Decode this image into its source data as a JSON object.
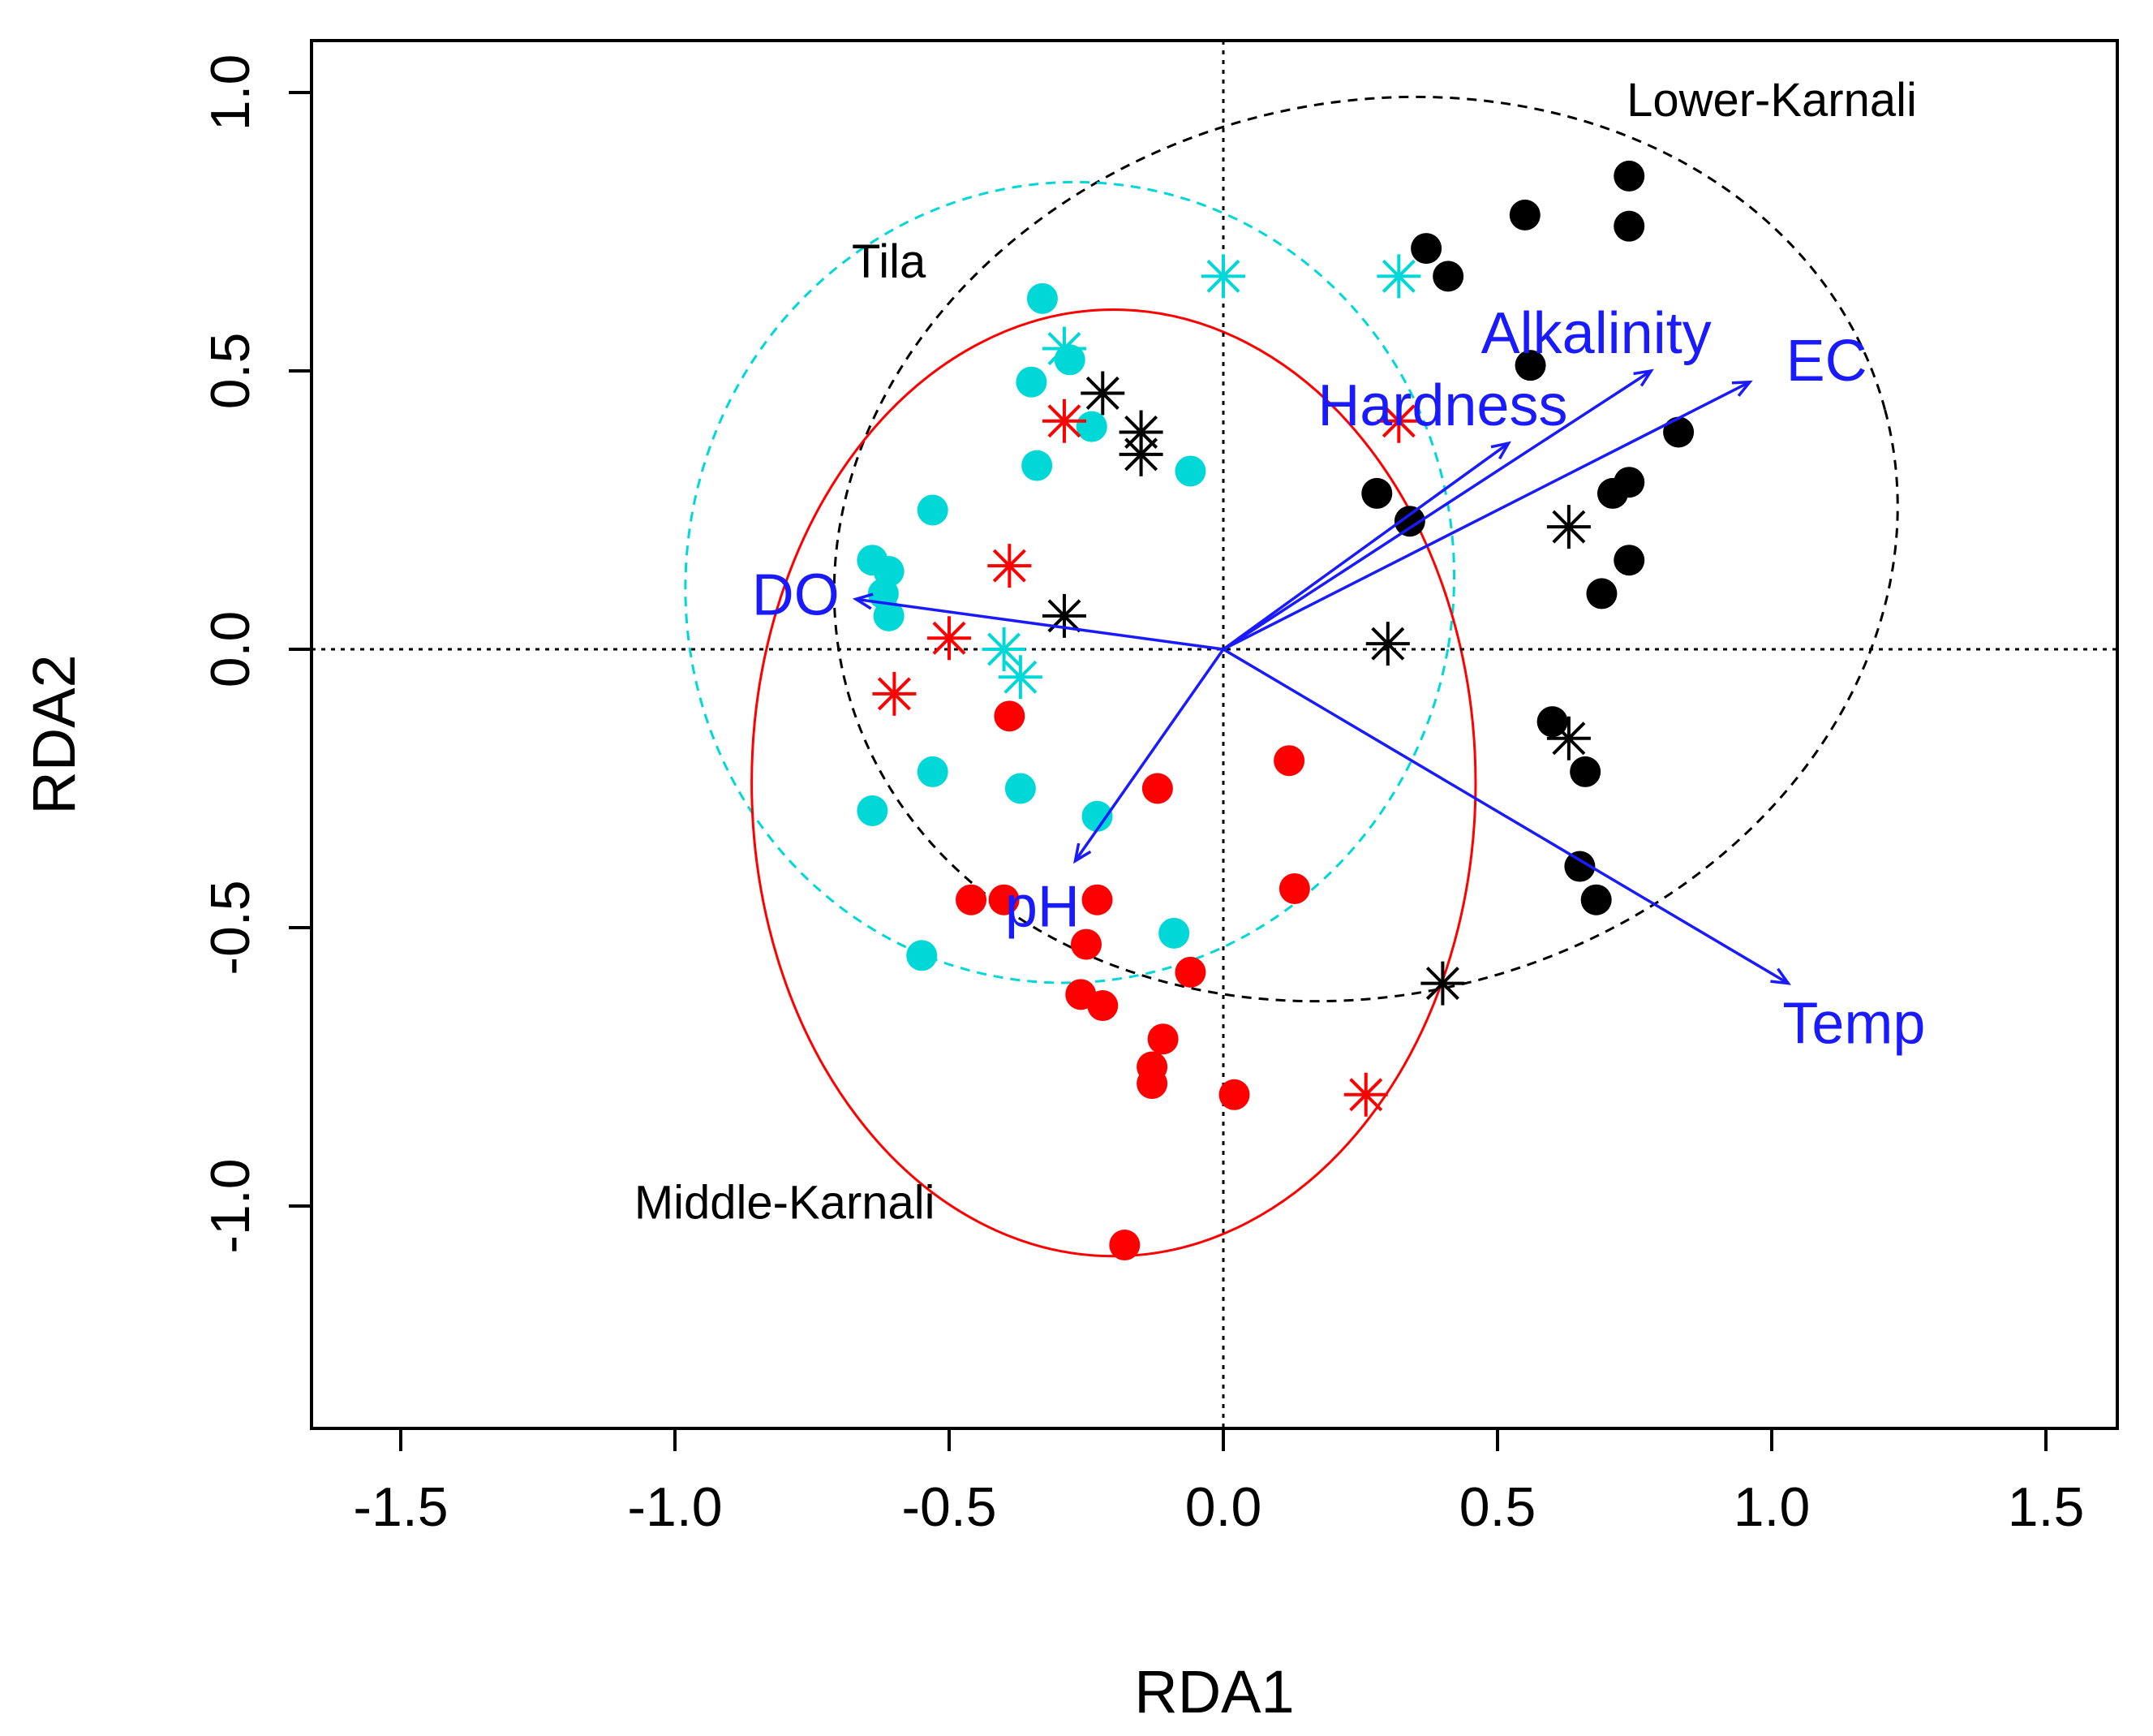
{
  "chart_data": {
    "type": "scatter",
    "subtype": "RDA biplot",
    "title": "",
    "xlabel": "RDA1",
    "ylabel": "RDA2",
    "xlim": [
      -1.65,
      1.65
    ],
    "ylim": [
      -1.4,
      1.1
    ],
    "xticks": [
      -1.5,
      -1.0,
      -0.5,
      0.0,
      0.5,
      1.0,
      1.5
    ],
    "xtick_labels": [
      "-1.5",
      "-1.0",
      "-0.5",
      "0.0",
      "0.5",
      "1.0",
      "1.5"
    ],
    "yticks": [
      -1.0,
      -0.5,
      0.0,
      0.5,
      1.0
    ],
    "ytick_labels": [
      "-1.0",
      "-0.5",
      "0.0",
      "0.5",
      "1.0"
    ],
    "reference_lines": {
      "x": 0,
      "y": 0,
      "style": "dotted"
    },
    "groups": [
      {
        "name": "Lower-Karnali",
        "color": "#000000",
        "ellipse": {
          "cx": 0.26,
          "cy": 0.18,
          "rx": 0.98,
          "ry": 0.8,
          "angle_deg": 15,
          "style": "dashed"
        },
        "label_pos": [
          1.0,
          0.98
        ],
        "points": [
          [
            0.74,
            0.85
          ],
          [
            0.74,
            0.76
          ],
          [
            0.55,
            0.78
          ],
          [
            0.37,
            0.72
          ],
          [
            0.41,
            0.67
          ],
          [
            0.56,
            0.51
          ],
          [
            0.83,
            0.39
          ],
          [
            0.74,
            0.3
          ],
          [
            0.71,
            0.28
          ],
          [
            0.28,
            0.28
          ],
          [
            0.34,
            0.23
          ],
          [
            0.74,
            0.16
          ],
          [
            0.69,
            0.1
          ],
          [
            0.6,
            -0.13
          ],
          [
            0.66,
            -0.22
          ],
          [
            0.65,
            -0.39
          ],
          [
            0.68,
            -0.45
          ]
        ],
        "stars": [
          [
            -0.22,
            0.46
          ],
          [
            -0.15,
            0.39
          ],
          [
            -0.15,
            0.35
          ],
          [
            -0.29,
            0.06
          ],
          [
            0.3,
            0.01
          ],
          [
            0.63,
            0.22
          ],
          [
            0.63,
            -0.16
          ],
          [
            0.4,
            -0.6
          ]
        ]
      },
      {
        "name": "Tila",
        "color": "#00d8d8",
        "ellipse": {
          "cx": -0.28,
          "cy": 0.12,
          "rx": 0.7,
          "ry": 0.72,
          "angle_deg": -10,
          "style": "dashed"
        },
        "label_pos": [
          -0.61,
          0.69
        ],
        "points": [
          [
            -0.33,
            0.63
          ],
          [
            -0.28,
            0.52
          ],
          [
            -0.35,
            0.48
          ],
          [
            -0.24,
            0.4
          ],
          [
            -0.34,
            0.33
          ],
          [
            -0.06,
            0.32
          ],
          [
            -0.53,
            0.25
          ],
          [
            -0.64,
            0.16
          ],
          [
            -0.61,
            0.14
          ],
          [
            -0.62,
            0.1
          ],
          [
            -0.61,
            0.06
          ],
          [
            -0.53,
            -0.22
          ],
          [
            -0.37,
            -0.25
          ],
          [
            -0.64,
            -0.29
          ],
          [
            -0.23,
            -0.3
          ],
          [
            -0.09,
            -0.51
          ],
          [
            -0.55,
            -0.55
          ]
        ],
        "stars": [
          [
            -0.29,
            0.54
          ],
          [
            0.0,
            0.67
          ],
          [
            0.32,
            0.67
          ],
          [
            -0.4,
            0.0
          ],
          [
            -0.37,
            -0.05
          ]
        ]
      },
      {
        "name": "Middle-Karnali",
        "color": "#ff0000",
        "ellipse": {
          "cx": -0.2,
          "cy": -0.24,
          "rx": 0.66,
          "ry": 0.85,
          "angle_deg": 0,
          "style": "solid"
        },
        "label_pos": [
          -0.8,
          -1.0
        ],
        "points": [
          [
            -0.39,
            -0.12
          ],
          [
            0.12,
            -0.2
          ],
          [
            -0.12,
            -0.25
          ],
          [
            0.13,
            -0.43
          ],
          [
            -0.46,
            -0.45
          ],
          [
            -0.4,
            -0.45
          ],
          [
            -0.23,
            -0.45
          ],
          [
            -0.25,
            -0.53
          ],
          [
            -0.06,
            -0.58
          ],
          [
            -0.26,
            -0.62
          ],
          [
            -0.22,
            -0.64
          ],
          [
            -0.11,
            -0.7
          ],
          [
            -0.13,
            -0.75
          ],
          [
            -0.13,
            -0.78
          ],
          [
            0.02,
            -0.8
          ],
          [
            -0.18,
            -1.07
          ]
        ],
        "stars": [
          [
            -0.29,
            0.41
          ],
          [
            0.32,
            0.41
          ],
          [
            -0.39,
            0.15
          ],
          [
            -0.5,
            0.02
          ],
          [
            -0.6,
            -0.08
          ],
          [
            0.26,
            -0.8
          ]
        ]
      }
    ],
    "vectors": [
      {
        "name": "Alkalinity",
        "x": 0.78,
        "y": 0.5,
        "label": [
          0.68,
          0.56
        ]
      },
      {
        "name": "EC",
        "x": 0.96,
        "y": 0.48,
        "label": [
          1.1,
          0.51
        ]
      },
      {
        "name": "Hardness",
        "x": 0.52,
        "y": 0.37,
        "label": [
          0.4,
          0.43
        ]
      },
      {
        "name": "DO",
        "x": -0.67,
        "y": 0.09,
        "label": [
          -0.78,
          0.09
        ]
      },
      {
        "name": "pH",
        "x": -0.27,
        "y": -0.38,
        "label": [
          -0.33,
          -0.47
        ]
      },
      {
        "name": "Temp",
        "x": 1.03,
        "y": -0.6,
        "label": [
          1.15,
          -0.68
        ]
      }
    ],
    "vector_color": "#1a1aff",
    "legend": "none"
  }
}
